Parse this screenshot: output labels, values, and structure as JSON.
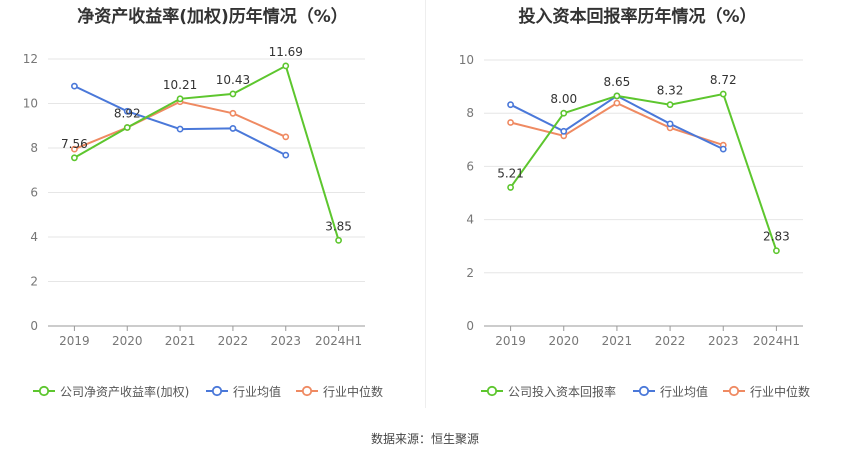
{
  "source": "数据来源：恒生聚源",
  "chart_data": [
    {
      "type": "line",
      "title": "净资产收益率(加权)历年情况（%）",
      "categories": [
        "2019",
        "2020",
        "2021",
        "2022",
        "2023",
        "2024H1"
      ],
      "ylim": [
        0,
        12
      ],
      "yticks": [
        0,
        2,
        4,
        6,
        8,
        10,
        12
      ],
      "grid": true,
      "legend_position": "bottom",
      "series": [
        {
          "name": "公司净资产收益率(加权)",
          "color": "#5dc62e",
          "values": [
            7.56,
            8.92,
            10.21,
            10.43,
            11.69,
            3.85
          ],
          "labels": [
            "7.56",
            "8.92",
            "10.21",
            "10.43",
            "11.69",
            "3.85"
          ]
        },
        {
          "name": "行业均值",
          "color": "#4a78d9",
          "values": [
            10.78,
            9.65,
            8.85,
            8.88,
            7.68,
            null
          ]
        },
        {
          "name": "行业中位数",
          "color": "#ef8a62",
          "values": [
            7.95,
            8.92,
            10.08,
            9.56,
            8.5,
            null
          ]
        }
      ]
    },
    {
      "type": "line",
      "title": "投入资本回报率历年情况（%）",
      "categories": [
        "2019",
        "2020",
        "2021",
        "2022",
        "2023",
        "2024H1"
      ],
      "ylim": [
        0,
        10
      ],
      "yticks": [
        0,
        2,
        4,
        6,
        8,
        10
      ],
      "grid": true,
      "legend_position": "bottom",
      "series": [
        {
          "name": "公司投入资本回报率",
          "color": "#5dc62e",
          "values": [
            5.21,
            8.0,
            8.65,
            8.32,
            8.72,
            2.83
          ],
          "labels": [
            "5.21",
            "8.00",
            "8.65",
            "8.32",
            "8.72",
            "2.83"
          ]
        },
        {
          "name": "行业均值",
          "color": "#4a78d9",
          "values": [
            8.32,
            7.32,
            8.65,
            7.6,
            6.65,
            null
          ]
        },
        {
          "name": "行业中位数",
          "color": "#ef8a62",
          "values": [
            7.65,
            7.15,
            8.38,
            7.45,
            6.8,
            null
          ]
        }
      ]
    }
  ]
}
